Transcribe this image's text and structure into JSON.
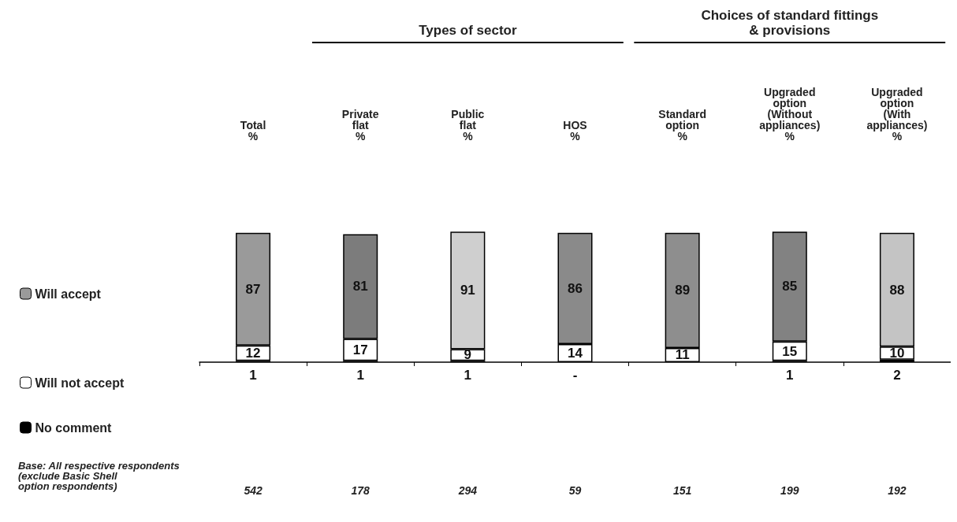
{
  "chart_data": {
    "type": "bar",
    "stacked": true,
    "categories": [
      "Total\n%",
      "Private\nflat\n%",
      "Public\nflat\n%",
      "HOS\n%",
      "Standard\noption\n%",
      "Upgraded\noption\n(Without\nappliances)\n%",
      "Upgraded\noption\n(With\nappliances)\n%"
    ],
    "series": [
      {
        "name": "No comment",
        "color": "#000000",
        "values": [
          1,
          1,
          1,
          0,
          null,
          1,
          2
        ],
        "value_labels": [
          "1",
          "1",
          "1",
          "-",
          null,
          "1",
          "2"
        ]
      },
      {
        "name": "Will not accept",
        "color": "#ffffff",
        "values": [
          12,
          17,
          9,
          14,
          11,
          15,
          10
        ]
      },
      {
        "name": "Will accept",
        "colors": [
          "#9a9a9a",
          "#7c7c7c",
          "#cfcfcf",
          "#8a8a8a",
          "#8e8e8e",
          "#828282",
          "#c4c4c4"
        ],
        "values": [
          87,
          81,
          91,
          86,
          89,
          85,
          88
        ]
      }
    ],
    "data_labels": true,
    "legend": "left",
    "annotations": [
      "Types of sector",
      "Choices of standard fittings\n& provisions",
      "Base: All respective respondents\n(exclude Basic Shell\noption respondents)",
      "542",
      "178",
      "294",
      "59",
      "151",
      "199",
      "192"
    ]
  }
}
